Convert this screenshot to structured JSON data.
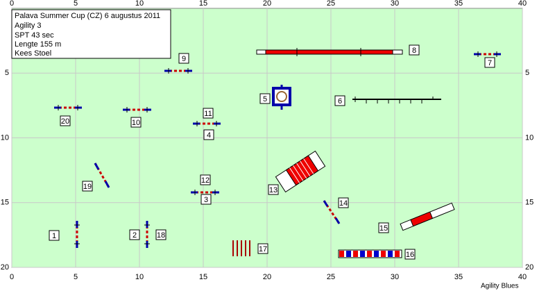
{
  "info": {
    "lines": [
      "Palava Summer Cup (CZ) 6 augustus 2011",
      "Agility 3",
      "SPT 43 sec",
      "Lengte 155 m",
      "Kees Stoel"
    ]
  },
  "axes": {
    "x_ticks": [
      0,
      5,
      10,
      15,
      20,
      25,
      30,
      35,
      40
    ],
    "y_ticks": [
      5,
      10,
      15,
      20
    ]
  },
  "obstacle_labels": [
    "1",
    "2",
    "3",
    "4",
    "5",
    "6",
    "7",
    "8",
    "9",
    "10",
    "11",
    "12",
    "13",
    "14",
    "15",
    "16",
    "17",
    "18",
    "19",
    "20"
  ],
  "footer": "Agility Blues"
}
